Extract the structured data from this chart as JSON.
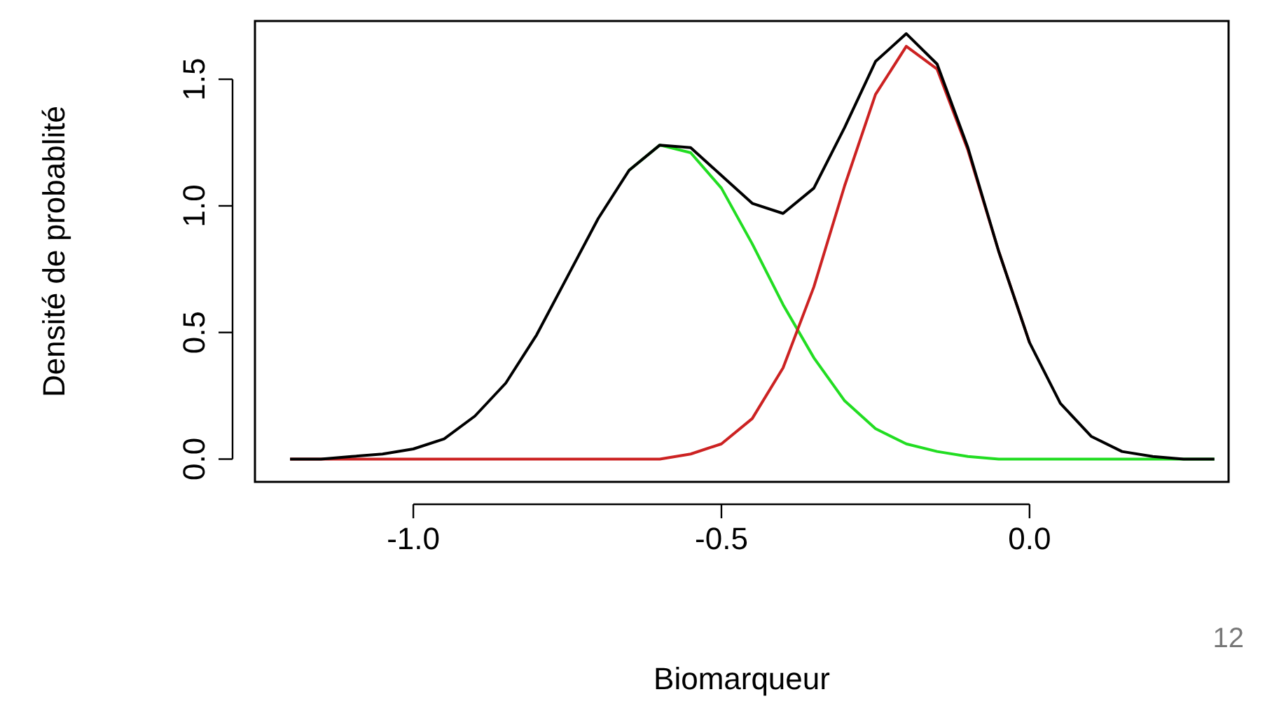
{
  "chart_data": {
    "type": "line",
    "xlabel": "Biomarqueur",
    "ylabel": "Densité de probablité",
    "annotations": [
      "12"
    ],
    "x": [
      -1.2,
      -1.15,
      -1.1,
      -1.05,
      -1.0,
      -0.95,
      -0.9,
      -0.85,
      -0.8,
      -0.75,
      -0.7,
      -0.65,
      -0.6,
      -0.55,
      -0.5,
      -0.45,
      -0.4,
      -0.35,
      -0.3,
      -0.25,
      -0.2,
      -0.15,
      -0.1,
      -0.05,
      0,
      0.05,
      0.1,
      0.15,
      0.2,
      0.25,
      0.3
    ],
    "series": [
      {
        "color": "#22dd22",
        "values": [
          null,
          null,
          null,
          null,
          null,
          null,
          null,
          null,
          null,
          null,
          null,
          1.14,
          1.24,
          1.21,
          1.07,
          0.85,
          0.61,
          0.4,
          0.23,
          0.12,
          0.06,
          0.03,
          0.01,
          0,
          0,
          0,
          0,
          0,
          0,
          0,
          0
        ]
      },
      {
        "color": "#cc2222",
        "values": [
          0,
          0,
          0,
          0,
          0,
          0,
          0,
          0,
          0,
          0,
          0,
          0,
          0,
          0.02,
          0.06,
          0.16,
          0.36,
          0.68,
          1.08,
          1.44,
          1.63,
          1.54,
          1.22,
          0.82,
          0.46,
          null,
          null,
          null,
          null,
          null,
          null
        ]
      },
      {
        "color": "#000000",
        "values": [
          0,
          0,
          0.01,
          0.02,
          0.04,
          0.08,
          0.17,
          0.3,
          0.49,
          0.72,
          0.95,
          1.14,
          1.24,
          1.23,
          1.12,
          1.01,
          0.97,
          1.07,
          1.31,
          1.57,
          1.68,
          1.56,
          1.23,
          0.82,
          0.46,
          0.22,
          0.09,
          0.03,
          0.01,
          0,
          0
        ]
      }
    ],
    "xlim": [
      -1.257,
      0.323
    ],
    "ylim": [
      -0.09,
      1.73
    ],
    "xticks": [
      {
        "value": -1,
        "label": "-1.0"
      },
      {
        "value": -0.5,
        "label": "-0.5"
      },
      {
        "value": 0,
        "label": "0.0"
      }
    ],
    "yticks": [
      {
        "value": 0,
        "label": "0.0"
      },
      {
        "value": 0.5,
        "label": "0.5"
      },
      {
        "value": 1,
        "label": "1.0"
      },
      {
        "value": 1.5,
        "label": "1.5"
      }
    ],
    "grid": false
  }
}
